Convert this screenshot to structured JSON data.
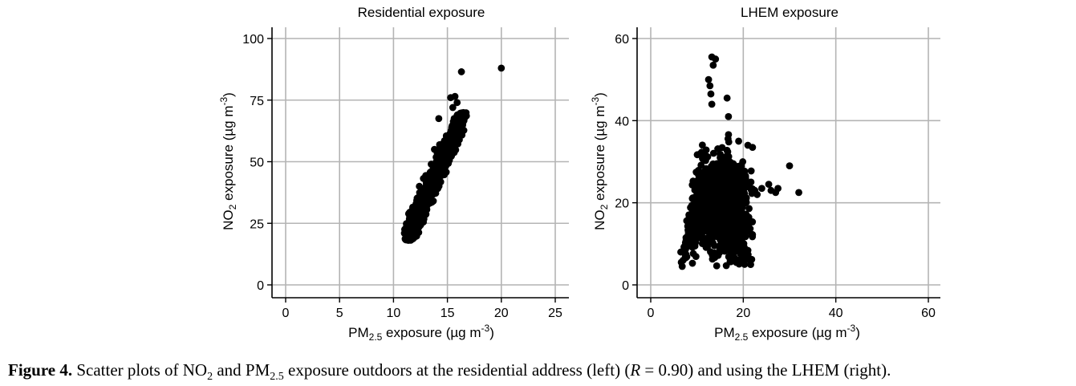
{
  "figure": {
    "caption": {
      "lead": "Figure 4.",
      "p1": " Scatter plots of NO",
      "s1": "2",
      "p2": " and PM",
      "s2": "2.5",
      "p3": " exposure outdoors at the residential address (left) (",
      "r_symbol": "R",
      "p4": " = 0.90) and using the LHEM (right)."
    }
  },
  "chart_data": [
    {
      "type": "scatter",
      "title": "Residential exposure",
      "xlabel": {
        "main": "PM",
        "sub": "2.5",
        "rest": " exposure (µg m",
        "sup": "-3",
        "close": ")"
      },
      "ylabel": {
        "main": "NO",
        "sub": "2",
        "rest": " exposure (µg m",
        "sup": "-3",
        "close": ")"
      },
      "xlim": [
        0,
        25
      ],
      "ylim": [
        0,
        100
      ],
      "xticks": [
        "0",
        "5",
        "10",
        "15",
        "20",
        "25"
      ],
      "yticks": [
        "0",
        "25",
        "50",
        "75",
        "100"
      ],
      "grid": true,
      "cloud": {
        "description": "dense elongated point cloud",
        "x_range": [
          11.0,
          16.8
        ],
        "y_range": [
          18,
          70
        ]
      },
      "points": [
        [
          20.0,
          88.0
        ],
        [
          16.3,
          86.5
        ],
        [
          15.3,
          76.0
        ],
        [
          15.7,
          76.5
        ],
        [
          15.9,
          74.0
        ],
        [
          15.5,
          72.0
        ],
        [
          16.5,
          69.0
        ],
        [
          14.2,
          67.5
        ],
        [
          16.2,
          63.5
        ],
        [
          15.8,
          66.0
        ],
        [
          13.8,
          55.0
        ],
        [
          14.3,
          55.5
        ],
        [
          14.9,
          60.5
        ],
        [
          13.5,
          49.0
        ],
        [
          12.4,
          40.0
        ],
        [
          11.2,
          18.5
        ],
        [
          11.3,
          20.0
        ],
        [
          11.6,
          22.0
        ],
        [
          12.1,
          24.5
        ],
        [
          12.8,
          27.0
        ]
      ]
    },
    {
      "type": "scatter",
      "title": "LHEM exposure",
      "xlabel": {
        "main": "PM",
        "sub": "2.5",
        "rest": " exposure (µg m",
        "sup": "-3",
        "close": ")"
      },
      "ylabel": {
        "main": "NO",
        "sub": "2",
        "rest": " exposure (µg m",
        "sup": "-3",
        "close": ")"
      },
      "xlim": [
        0,
        60
      ],
      "ylim": [
        0,
        60
      ],
      "xticks": [
        "0",
        "20",
        "40",
        "60"
      ],
      "yticks": [
        "0",
        "20",
        "40",
        "60"
      ],
      "grid": true,
      "cloud": {
        "description": "dense fan-shaped point cloud",
        "x_range": [
          6.5,
          22
        ],
        "y_range": [
          4.5,
          38
        ]
      },
      "points": [
        [
          13.2,
          55.5
        ],
        [
          14.0,
          55.0
        ],
        [
          13.5,
          53.5
        ],
        [
          12.5,
          50.0
        ],
        [
          12.8,
          48.5
        ],
        [
          13.0,
          46.5
        ],
        [
          16.5,
          45.5
        ],
        [
          13.2,
          44.0
        ],
        [
          16.8,
          41.0
        ],
        [
          19.0,
          35.0
        ],
        [
          21.0,
          34.0
        ],
        [
          22.0,
          33.5
        ],
        [
          30.0,
          29.0
        ],
        [
          32.0,
          22.5
        ],
        [
          27.5,
          23.5
        ],
        [
          27.0,
          22.5
        ],
        [
          26.0,
          23.0
        ],
        [
          24.0,
          23.5
        ],
        [
          25.5,
          24.5
        ],
        [
          23.0,
          22.0
        ],
        [
          22.5,
          23.0
        ],
        [
          20.5,
          26.5
        ],
        [
          18.5,
          27.5
        ],
        [
          17.5,
          25.5
        ],
        [
          6.8,
          4.5
        ],
        [
          6.6,
          5.5
        ],
        [
          7.0,
          6.0
        ],
        [
          7.5,
          7.0
        ],
        [
          6.5,
          8.0
        ],
        [
          15.0,
          31.0
        ]
      ]
    }
  ]
}
